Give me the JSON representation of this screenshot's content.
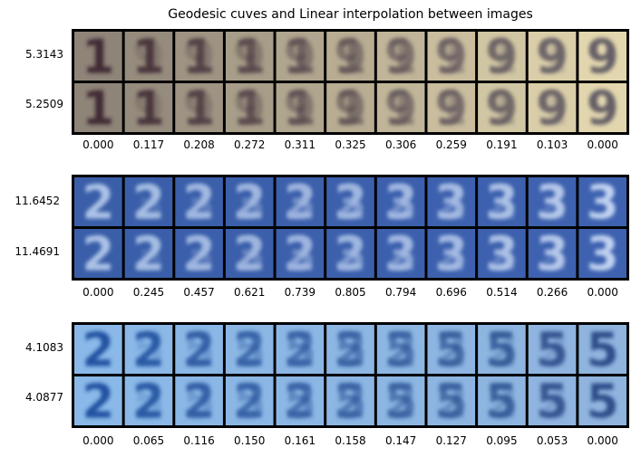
{
  "chart_data": {
    "type": "image-grid",
    "title": "Geodesic cuves and Linear interpolation between images",
    "panels": [
      {
        "name": "panel-1",
        "row_labels": [
          "5.3143",
          "5.2509"
        ],
        "x_ticks": [
          "0.000",
          "0.117",
          "0.208",
          "0.272",
          "0.311",
          "0.325",
          "0.306",
          "0.259",
          "0.191",
          "0.103",
          "0.000"
        ],
        "start_digit": "1",
        "end_digit": "9",
        "start_color": "#8e8478",
        "end_color": "#e2d6ae",
        "ink_start": "#3d2630",
        "ink_end": "#5e5a63"
      },
      {
        "name": "panel-2",
        "row_labels": [
          "11.6452",
          "11.4691"
        ],
        "x_ticks": [
          "0.000",
          "0.245",
          "0.457",
          "0.621",
          "0.739",
          "0.805",
          "0.794",
          "0.696",
          "0.514",
          "0.266",
          "0.000"
        ],
        "start_digit": "2",
        "end_digit": "3",
        "start_color": "#3a5ea8",
        "end_color": "#3e62b0",
        "ink_start": "#b2c8ea",
        "ink_end": "#c8d8f4"
      },
      {
        "name": "panel-3",
        "row_labels": [
          "4.1083",
          "4.0877"
        ],
        "x_ticks": [
          "0.000",
          "0.065",
          "0.116",
          "0.150",
          "0.161",
          "0.158",
          "0.147",
          "0.127",
          "0.095",
          "0.053",
          "0.000"
        ],
        "start_digit": "2",
        "end_digit": "5",
        "start_color": "#8ab8e8",
        "end_color": "#8fb4de",
        "ink_start": "#1e4e9e",
        "ink_end": "#2a4a86"
      }
    ]
  }
}
